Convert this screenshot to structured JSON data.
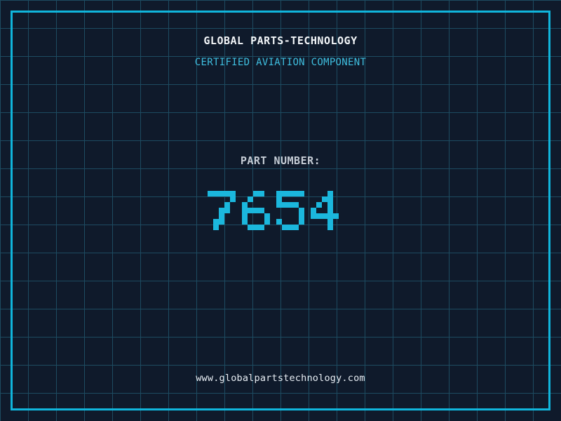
{
  "header": {
    "title": "GLOBAL PARTS-TECHNOLOGY",
    "subtitle": "CERTIFIED AVIATION COMPONENT"
  },
  "part": {
    "label": "PART NUMBER:",
    "number": "7654"
  },
  "footer": {
    "website": "www.globalpartstechnology.com"
  },
  "colors": {
    "background": "#0f1a2b",
    "grid-line": "#1d4b61",
    "frame-accent": "#10b5dc",
    "number-accent": "#1bb7dd",
    "subtitle-accent": "#3fbfe0",
    "title-text": "#f2f5f8",
    "label-text": "#c5ccd5",
    "url-text": "#e8eef4"
  }
}
